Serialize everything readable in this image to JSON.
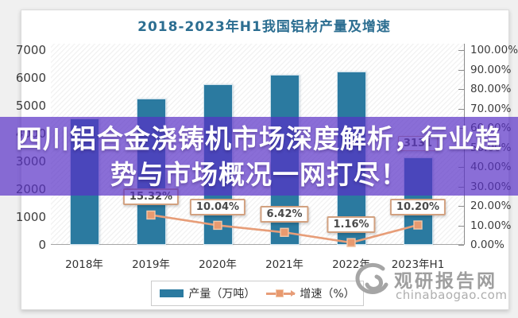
{
  "banner": {
    "lines": [
      "四川铝合金浇铸机市场深度解析，行业趋",
      "势与市场概况一网打尽！"
    ],
    "bg_color": "rgba(88,48,198,0.7)",
    "text_color": "#ffffff"
  },
  "chart": {
    "title": "2018-2023年H1我国铝材产量及增速",
    "title_color": "#2c6e91"
  },
  "chart_data": {
    "type": "combo",
    "title": "2018-2023年H1我国铝材产量及增速",
    "categories": [
      "2018年",
      "2019年",
      "2020年",
      "2021年",
      "2022年",
      "2023年H1"
    ],
    "series": [
      {
        "name": "产量（万吨）",
        "type": "bar",
        "color": "#2b7aa0",
        "values": [
          4555,
          5252,
          5779,
          6105,
          6222,
          3131
        ],
        "data_labels": [
          null,
          null,
          null,
          null,
          null,
          "3131"
        ]
      },
      {
        "name": "增速（%）",
        "type": "line",
        "color": "#e79d78",
        "marker_color": "#e89a6f",
        "marker_border": "#f2c7a9",
        "values": [
          null,
          15.32,
          10.04,
          6.42,
          1.16,
          10.2
        ],
        "data_labels": [
          null,
          "15.32%",
          "10.04%",
          "6.42%",
          "1.16%",
          "10.20%"
        ]
      }
    ],
    "left_axis": {
      "min": 0,
      "max": 7000,
      "step": 1000,
      "labels": [
        "0",
        "1000",
        "2000",
        "3000",
        "4000",
        "5000",
        "6000",
        "7000"
      ]
    },
    "right_axis": {
      "min": 0,
      "max": 100,
      "step": 10,
      "labels": [
        "0.00%",
        "10.00%",
        "20.00%",
        "30.00%",
        "40.00%",
        "50.00%",
        "60.00%",
        "70.00%",
        "80.00%",
        "90.00%",
        "100.00%"
      ]
    },
    "grid": "off",
    "legend_position": "bottom"
  },
  "legend": {
    "items": [
      {
        "label": "产量（万吨）",
        "swatch": "bar"
      },
      {
        "label": "增速（%）",
        "swatch": "line-marker"
      }
    ]
  },
  "watermark": {
    "logo_icon": "swirl-logo",
    "brand": "观研报告网",
    "domain": "chinabaogao.com"
  }
}
